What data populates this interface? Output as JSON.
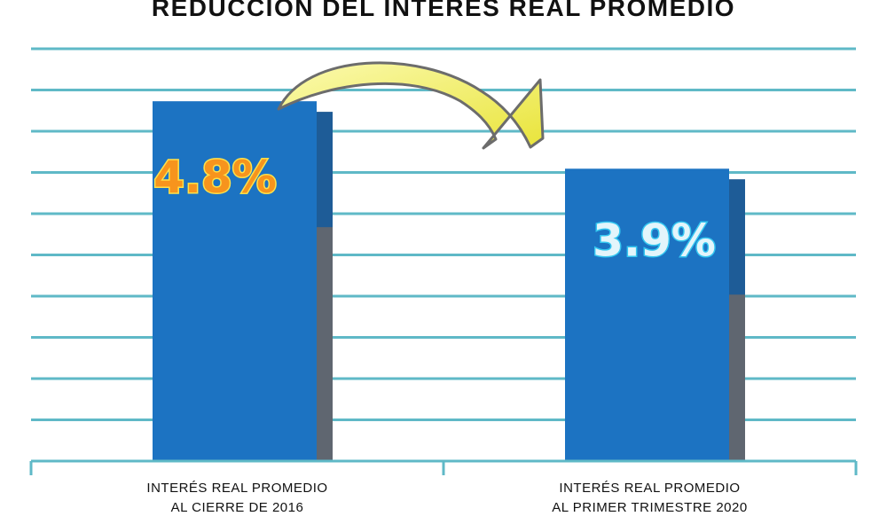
{
  "chart_data": {
    "type": "bar",
    "title": "REDUCCIÓN DEL INTERÉS REAL PROMEDIO",
    "categories": [
      [
        "INTERÉS REAL PROMEDIO",
        "AL CIERRE DE 2016"
      ],
      [
        "INTERÉS REAL PROMEDIO",
        "AL PRIMER TRIMESTRE 2020"
      ]
    ],
    "values": [
      4.8,
      3.9
    ],
    "data_labels": [
      "4.8%",
      "3.9%"
    ],
    "ylim": [
      0,
      5.5
    ],
    "grid": true,
    "annotations": [
      "yellow curved arrow from first bar to second bar"
    ]
  },
  "colors": {
    "bar": "#1c73c2",
    "bar_shadow": "#5f6670",
    "bar_shadow_top": "#135a9e",
    "grid": "#5fb9c7",
    "axis": "#5fb9c7",
    "label_first_fill": "#f7941d",
    "label_first_stroke": "#ffe14a",
    "label_second_fill": "#e3f5fb",
    "label_second_stroke": "#33c6f0",
    "arrow_fill": "#f1ee5a",
    "arrow_stroke": "#6c6c6c"
  }
}
